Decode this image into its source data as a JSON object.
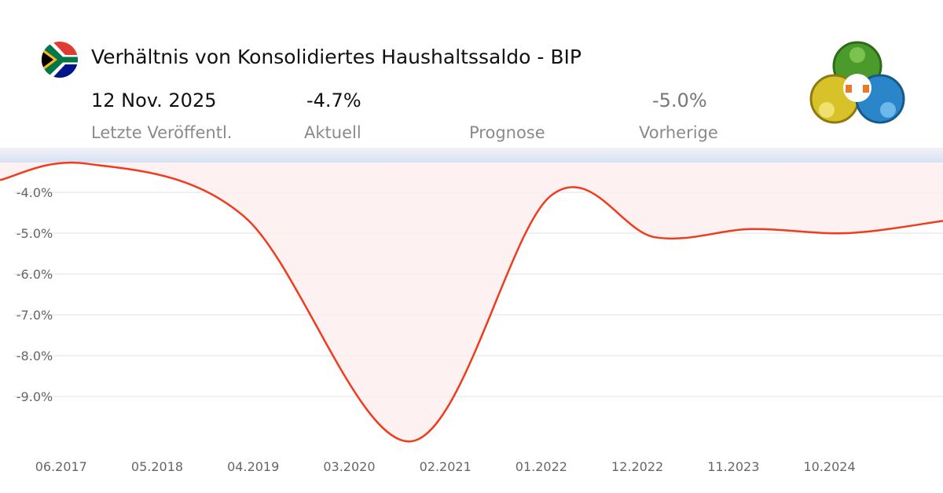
{
  "header": {
    "title": "Verhältnis von Konsolidiertes Haushaltssaldo - BIP",
    "country_flag_icon": "south-africa-flag-icon",
    "logo_icon": "metatrader-logo-icon",
    "stats": [
      {
        "label": "Letzte Veröffentl.",
        "value": "12 Nov. 2025"
      },
      {
        "label": "Aktuell",
        "value": "-4.7%"
      },
      {
        "label": "Prognose",
        "value": ""
      },
      {
        "label": "Vorherige",
        "value": "-5.0%"
      }
    ]
  },
  "chart_data": {
    "type": "area",
    "line_color": "#f03c1e",
    "fill_color": "#fdeeee",
    "grid": true,
    "ylim": [
      -10.44,
      -3.27
    ],
    "xlim": [
      "2016-11",
      "2025-11"
    ],
    "yticks": [
      "-4.0%",
      "-5.0%",
      "-6.0%",
      "-7.0%",
      "-8.0%",
      "-9.0%"
    ],
    "ytick_values": [
      -4,
      -5,
      -6,
      -7,
      -8,
      -9
    ],
    "xticks": [
      "06.2017",
      "05.2018",
      "04.2019",
      "03.2020",
      "02.2021",
      "01.2022",
      "12.2022",
      "11.2023",
      "10.2024"
    ],
    "points": [
      {
        "x": "2016-11",
        "y": -3.7
      },
      {
        "x": "2017-09",
        "y": -3.3
      },
      {
        "x": "2019-03",
        "y": -4.6
      },
      {
        "x": "2020-10",
        "y": -10.1
      },
      {
        "x": "2022-02",
        "y": -4.1
      },
      {
        "x": "2023-02",
        "y": -5.1
      },
      {
        "x": "2024-01",
        "y": -4.9
      },
      {
        "x": "2024-12",
        "y": -5.0
      },
      {
        "x": "2025-11",
        "y": -4.7
      }
    ]
  }
}
